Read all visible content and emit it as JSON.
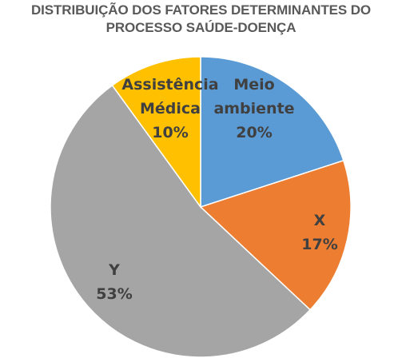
{
  "chart_data": {
    "type": "pie",
    "title_lines": [
      "DISTRIBUIÇÃO DOS FATORES DETERMINANTES DO",
      "PROCESSO SAÚDE-DOENÇA"
    ],
    "slices": [
      {
        "label_lines": [
          "Meio",
          "ambiente"
        ],
        "value": 20,
        "value_label": "20%",
        "color": "#5B9BD5"
      },
      {
        "label_lines": [
          "X"
        ],
        "value": 17,
        "value_label": "17%",
        "color": "#ED7D31"
      },
      {
        "label_lines": [
          "Y"
        ],
        "value": 53,
        "value_label": "53%",
        "color": "#A5A5A5"
      },
      {
        "label_lines": [
          "Assistência",
          "Médica"
        ],
        "value": 10,
        "value_label": "10%",
        "color": "#FFC000"
      }
    ]
  }
}
